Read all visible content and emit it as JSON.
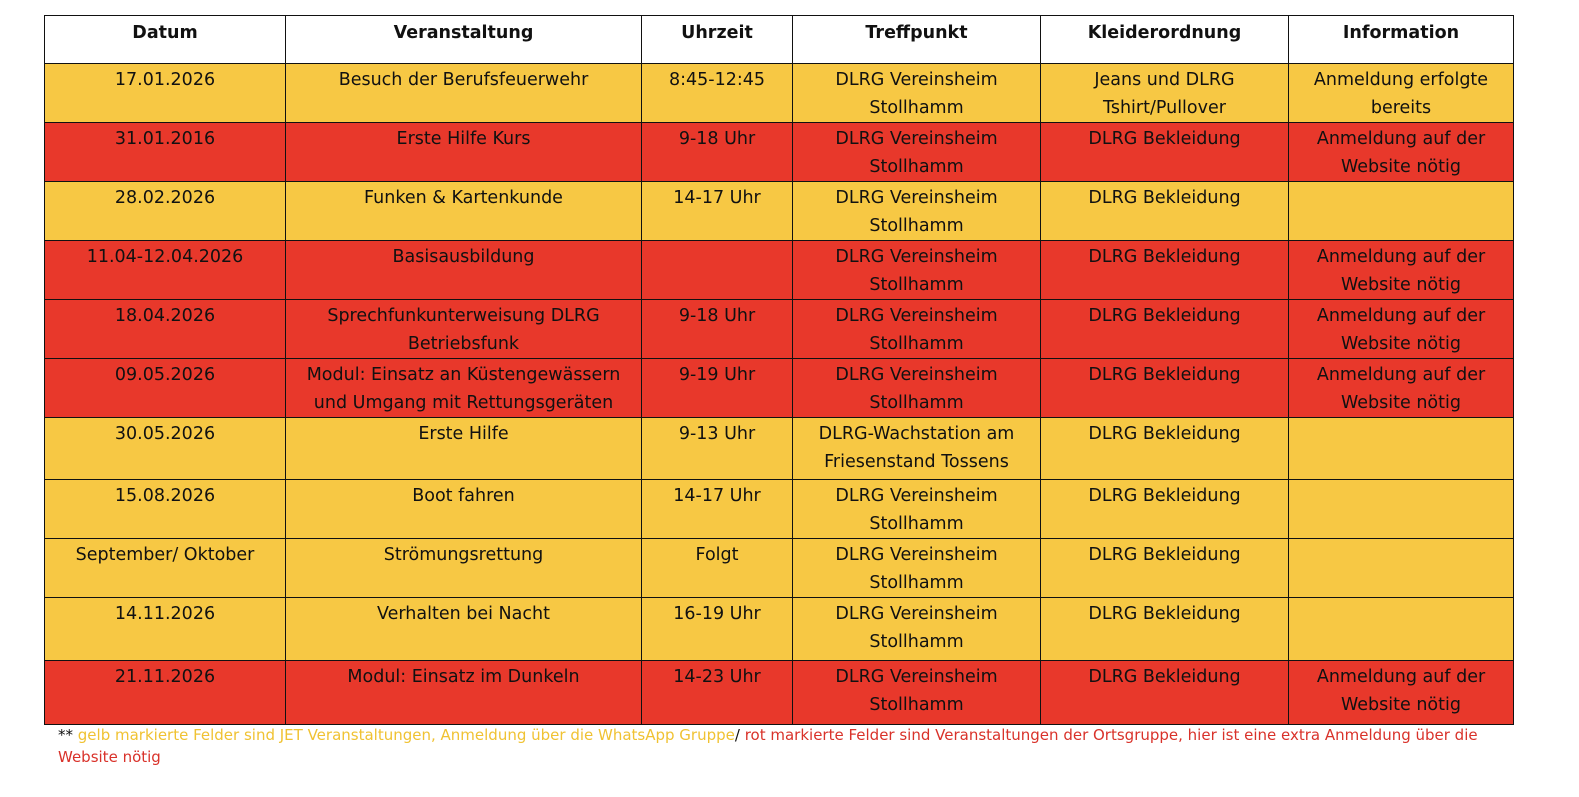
{
  "table": {
    "header": [
      "Datum",
      "Veranstaltung",
      "Uhrzeit",
      "Treffpunkt",
      "Kleiderordnung",
      "Information"
    ],
    "colors": {
      "yellow": "#f7c844",
      "red": "#e8382b"
    },
    "rows": [
      {
        "color": "yellow",
        "cells": [
          [
            "17.01.2026"
          ],
          [
            "Besuch der Berufsfeuerwehr"
          ],
          [
            "8:45-12:45"
          ],
          [
            "DLRG Vereinsheim",
            "Stollhamm"
          ],
          [
            "Jeans und DLRG",
            "Tshirt/Pullover"
          ],
          [
            "Anmeldung erfolgte",
            "bereits"
          ]
        ]
      },
      {
        "color": "red",
        "cells": [
          [
            "31.01.2016"
          ],
          [
            "Erste Hilfe Kurs"
          ],
          [
            "9-18 Uhr"
          ],
          [
            "DLRG Vereinsheim",
            "Stollhamm"
          ],
          [
            "DLRG Bekleidung"
          ],
          [
            "Anmeldung auf der",
            "Website nötig"
          ]
        ]
      },
      {
        "color": "yellow",
        "cells": [
          [
            "28.02.2026"
          ],
          [
            "Funken & Kartenkunde"
          ],
          [
            "14-17 Uhr"
          ],
          [
            "DLRG Vereinsheim",
            "Stollhamm"
          ],
          [
            "DLRG Bekleidung"
          ],
          []
        ]
      },
      {
        "color": "red",
        "cells": [
          [
            "11.04-12.04.2026"
          ],
          [
            "Basisausbildung"
          ],
          [],
          [
            "DLRG Vereinsheim",
            "Stollhamm"
          ],
          [
            "DLRG Bekleidung"
          ],
          [
            "Anmeldung auf der",
            "Website nötig"
          ]
        ]
      },
      {
        "color": "red",
        "cells": [
          [
            "18.04.2026"
          ],
          [
            "Sprechfunkunterweisung DLRG",
            "Betriebsfunk"
          ],
          [
            "9-18 Uhr"
          ],
          [
            "DLRG Vereinsheim",
            "Stollhamm"
          ],
          [
            "DLRG Bekleidung"
          ],
          [
            "Anmeldung auf der",
            "Website nötig"
          ]
        ]
      },
      {
        "color": "red",
        "cells": [
          [
            "09.05.2026"
          ],
          [
            "Modul: Einsatz an Küstengewässern",
            "und Umgang mit Rettungsgeräten"
          ],
          [
            "9-19 Uhr"
          ],
          [
            "DLRG Vereinsheim",
            "Stollhamm"
          ],
          [
            "DLRG Bekleidung"
          ],
          [
            "Anmeldung auf der",
            "Website nötig"
          ]
        ]
      },
      {
        "color": "yellow",
        "cells": [
          [
            "30.05.2026"
          ],
          [
            "Erste Hilfe"
          ],
          [
            "9-13 Uhr"
          ],
          [
            "DLRG-Wachstation am",
            "Friesenstand Tossens"
          ],
          [
            "DLRG Bekleidung"
          ],
          []
        ]
      },
      {
        "color": "yellow",
        "cells": [
          [
            "15.08.2026"
          ],
          [
            "Boot fahren"
          ],
          [
            "14-17 Uhr"
          ],
          [
            "DLRG Vereinsheim",
            "Stollhamm"
          ],
          [
            "DLRG Bekleidung"
          ],
          []
        ]
      },
      {
        "color": "yellow",
        "cells": [
          [
            "September/ Oktober"
          ],
          [
            "Strömungsrettung"
          ],
          [
            "Folgt"
          ],
          [
            "DLRG Vereinsheim",
            "Stollhamm"
          ],
          [
            "DLRG Bekleidung"
          ],
          []
        ]
      },
      {
        "color": "yellow",
        "cells": [
          [
            "14.11.2026"
          ],
          [
            "Verhalten bei Nacht"
          ],
          [
            "16-19 Uhr"
          ],
          [
            "DLRG Vereinsheim",
            "Stollhamm"
          ],
          [
            "DLRG Bekleidung"
          ],
          []
        ]
      },
      {
        "color": "red",
        "cells": [
          [
            "21.11.2026"
          ],
          [
            "Modul: Einsatz im Dunkeln"
          ],
          [
            "14-23 Uhr"
          ],
          [
            "DLRG Vereinsheim",
            "Stollhamm"
          ],
          [
            "DLRG Bekleidung"
          ],
          [
            "Anmeldung auf der",
            "Website nötig"
          ]
        ]
      }
    ]
  },
  "footnote": {
    "prefix": "**",
    "yellow_text": "gelb markierte Felder sind JET Veranstaltungen, Anmeldung über die WhatsApp Gruppe",
    "separator": "/",
    "red_text": "rot markierte Felder sind Veranstaltungen der Ortsgruppe, hier ist eine extra Anmeldung über die Website nötig"
  }
}
